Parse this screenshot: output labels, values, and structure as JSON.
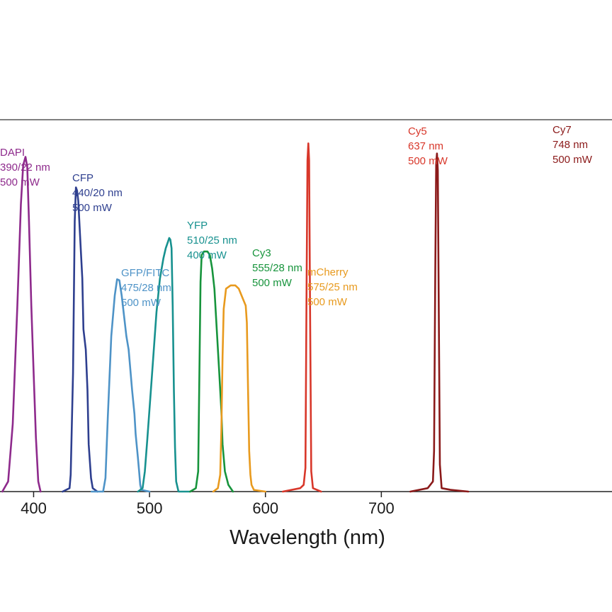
{
  "chart_data": {
    "type": "line",
    "title": "",
    "xlabel": "Wavelength (nm)",
    "ylabel": "",
    "xlim": [
      371,
      899
    ],
    "ylim": [
      0,
      1.1
    ],
    "xticks": [
      400,
      500,
      600,
      700
    ],
    "grid": false,
    "legend": "none",
    "series": [
      {
        "name": "DAPI",
        "color": "#8e2a8c",
        "label_lines": [
          "DAPI",
          "390/22 nm",
          "500 mW"
        ],
        "points": [
          [
            373,
            0
          ],
          [
            378,
            0.03
          ],
          [
            382,
            0.2
          ],
          [
            386,
            0.55
          ],
          [
            389,
            0.85
          ],
          [
            391,
            0.965
          ],
          [
            393,
            0.99
          ],
          [
            394.5,
            0.96
          ],
          [
            396,
            0.8
          ],
          [
            398,
            0.55
          ],
          [
            400,
            0.35
          ],
          [
            402,
            0.16
          ],
          [
            404,
            0.03
          ],
          [
            406,
            0
          ]
        ]
      },
      {
        "name": "CFP",
        "color": "#2e3f8f",
        "label_lines": [
          "CFP",
          "440/20 nm",
          "500 mW"
        ],
        "points": [
          [
            425,
            0
          ],
          [
            431,
            0.01
          ],
          [
            432,
            0.05
          ],
          [
            434,
            0.35
          ],
          [
            435.5,
            0.8
          ],
          [
            436.5,
            0.9
          ],
          [
            437.5,
            0.89
          ],
          [
            438.5,
            0.86
          ],
          [
            440.5,
            0.73
          ],
          [
            442,
            0.63
          ],
          [
            443,
            0.48
          ],
          [
            445,
            0.42
          ],
          [
            446.5,
            0.3
          ],
          [
            447.5,
            0.14
          ],
          [
            449.5,
            0.04
          ],
          [
            451,
            0.01
          ],
          [
            455,
            0
          ]
        ]
      },
      {
        "name": "GFP/FITC",
        "color": "#4e93c7",
        "label_lines": [
          "GFP/FITC",
          "475/28 nm",
          "500 mW"
        ],
        "points": [
          [
            450,
            0
          ],
          [
            460,
            0
          ],
          [
            462,
            0.04
          ],
          [
            464,
            0.22
          ],
          [
            467,
            0.46
          ],
          [
            470,
            0.58
          ],
          [
            472,
            0.628
          ],
          [
            474,
            0.625
          ],
          [
            476,
            0.58
          ],
          [
            478,
            0.52
          ],
          [
            480,
            0.46
          ],
          [
            482,
            0.42
          ],
          [
            485,
            0.3
          ],
          [
            487,
            0.23
          ],
          [
            488,
            0.17
          ],
          [
            490,
            0.1
          ],
          [
            491,
            0.06
          ],
          [
            492,
            0.02
          ],
          [
            493,
            0.005
          ],
          [
            500,
            0
          ]
        ]
      },
      {
        "name": "YFP",
        "color": "#17918f",
        "label_lines": [
          "YFP",
          "510/25 nm",
          "400 mW"
        ],
        "points": [
          [
            490,
            0
          ],
          [
            494,
            0.01
          ],
          [
            496,
            0.06
          ],
          [
            498,
            0.15
          ],
          [
            502,
            0.34
          ],
          [
            506,
            0.53
          ],
          [
            509,
            0.63
          ],
          [
            512,
            0.69
          ],
          [
            514,
            0.72
          ],
          [
            516,
            0.74
          ],
          [
            517,
            0.75
          ],
          [
            518,
            0.745
          ],
          [
            519,
            0.72
          ],
          [
            520,
            0.55
          ],
          [
            521,
            0.3
          ],
          [
            522,
            0.13
          ],
          [
            523,
            0.03
          ],
          [
            525,
            0
          ],
          [
            535,
            0
          ]
        ]
      },
      {
        "name": "Cy3",
        "color": "#17943c",
        "label_lines": [
          "Cy3",
          "555/28 nm",
          "500 mW"
        ],
        "points": [
          [
            535,
            0
          ],
          [
            540,
            0.01
          ],
          [
            542,
            0.06
          ],
          [
            543,
            0.35
          ],
          [
            544,
            0.62
          ],
          [
            545,
            0.7
          ],
          [
            547,
            0.71
          ],
          [
            550,
            0.71
          ],
          [
            552,
            0.7
          ],
          [
            554,
            0.66
          ],
          [
            556,
            0.6
          ],
          [
            558,
            0.48
          ],
          [
            560,
            0.36
          ],
          [
            562,
            0.24
          ],
          [
            563,
            0.14
          ],
          [
            565,
            0.06
          ],
          [
            568,
            0.02
          ],
          [
            572,
            0
          ]
        ]
      },
      {
        "name": "mCherry",
        "color": "#e89a1e",
        "label_lines": [
          "mCherry",
          "575/25 nm",
          "500 mW"
        ],
        "points": [
          [
            555,
            0
          ],
          [
            559,
            0.01
          ],
          [
            561,
            0.05
          ],
          [
            562,
            0.18
          ],
          [
            563,
            0.4
          ],
          [
            564,
            0.54
          ],
          [
            566,
            0.6
          ],
          [
            570,
            0.61
          ],
          [
            574,
            0.61
          ],
          [
            577,
            0.6
          ],
          [
            580,
            0.575
          ],
          [
            583,
            0.55
          ],
          [
            584,
            0.5
          ],
          [
            585,
            0.3
          ],
          [
            586,
            0.12
          ],
          [
            587,
            0.05
          ],
          [
            588,
            0.02
          ],
          [
            590,
            0.005
          ],
          [
            600,
            0
          ]
        ]
      },
      {
        "name": "Cy5",
        "color": "#d8372a",
        "label_lines": [
          "Cy5",
          "637 nm",
          "500 mW"
        ],
        "points": [
          [
            615,
            0
          ],
          [
            630,
            0.01
          ],
          [
            633,
            0.02
          ],
          [
            634.5,
            0.07
          ],
          [
            635.5,
            0.6
          ],
          [
            636.3,
            0.98
          ],
          [
            637,
            1.03
          ],
          [
            637.7,
            0.98
          ],
          [
            638.5,
            0.55
          ],
          [
            639.5,
            0.06
          ],
          [
            641,
            0.01
          ],
          [
            648,
            0
          ]
        ]
      },
      {
        "name": "Cy7",
        "color": "#8b1a1a",
        "label_lines": [
          "Cy7",
          "748 nm",
          "500 mW"
        ],
        "points": [
          [
            725,
            0
          ],
          [
            740,
            0.01
          ],
          [
            744.5,
            0.03
          ],
          [
            745.5,
            0.12
          ],
          [
            746.5,
            0.65
          ],
          [
            747.3,
            0.97
          ],
          [
            748,
            1.0
          ],
          [
            748.7,
            0.95
          ],
          [
            749.5,
            0.55
          ],
          [
            750.5,
            0.08
          ],
          [
            752,
            0.01
          ],
          [
            760,
            0.005
          ],
          [
            775,
            0
          ]
        ]
      }
    ]
  }
}
